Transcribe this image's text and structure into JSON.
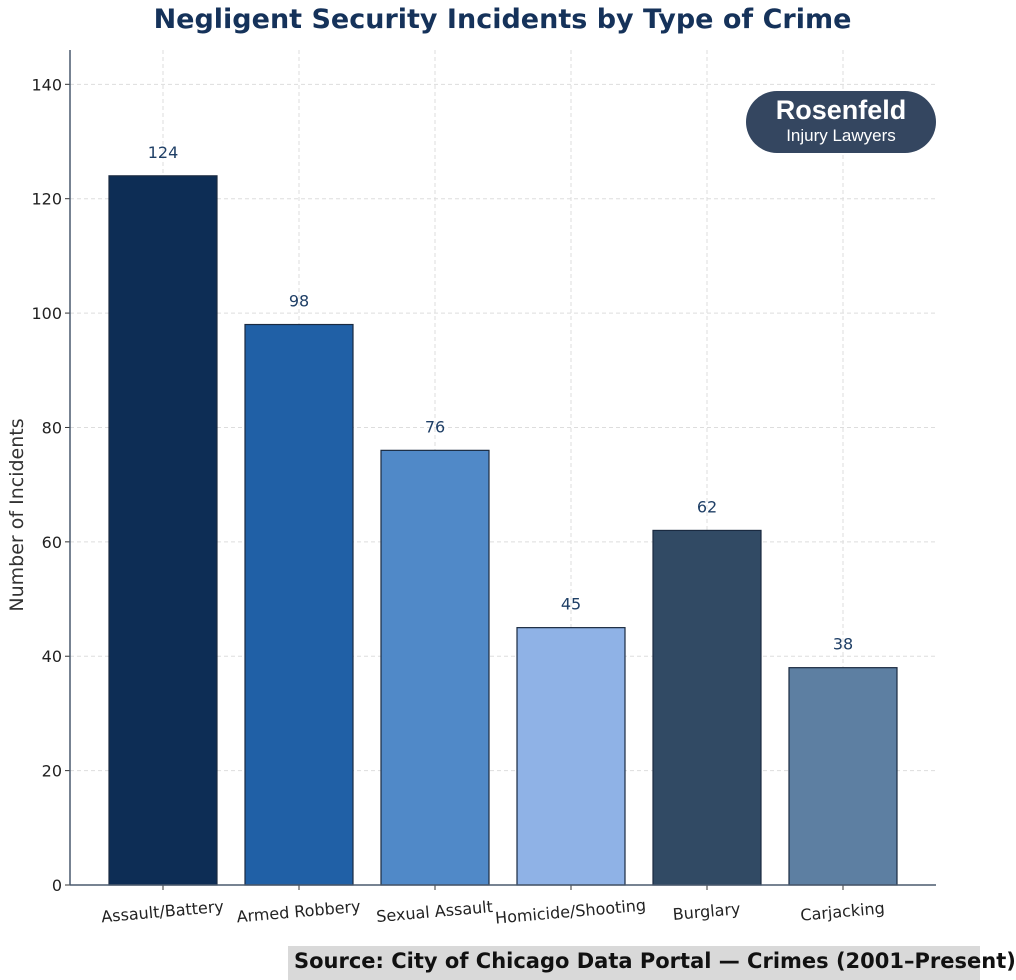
{
  "chart_data": {
    "type": "bar",
    "title": "Negligent Security Incidents by Type of Crime",
    "xlabel": "",
    "ylabel": "Number of Incidents",
    "categories": [
      "Assault/Battery",
      "Armed Robbery",
      "Sexual Assault",
      "Homicide/Shooting",
      "Burglary",
      "Carjacking"
    ],
    "values": [
      124,
      98,
      76,
      45,
      62,
      38
    ],
    "bar_colors": [
      "#0d2d55",
      "#2060a6",
      "#5089c8",
      "#8fb2e6",
      "#314a64",
      "#5d7fa2"
    ],
    "ylim": [
      0,
      146
    ],
    "yticks": [
      0,
      20,
      40,
      60,
      80,
      100,
      120,
      140
    ],
    "grid": true,
    "data_labels": true
  },
  "logo": {
    "name": "Rosenfeld",
    "tagline": "Injury Lawyers"
  },
  "source": "Source: City of Chicago Data Portal — Crimes (2001–Present)"
}
